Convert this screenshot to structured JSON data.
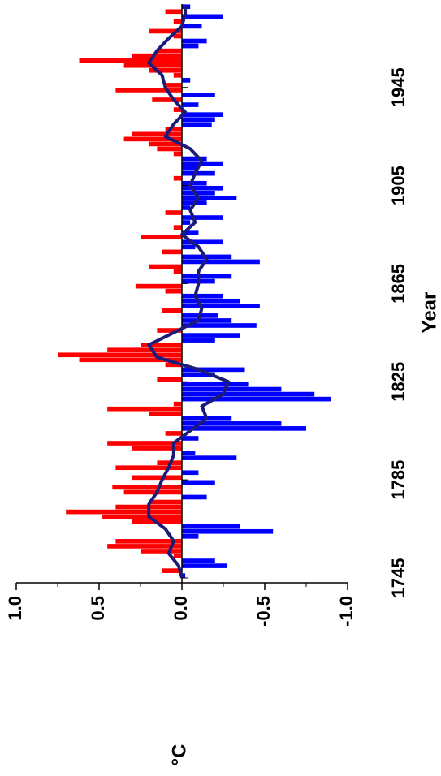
{
  "chart_data": {
    "type": "bar",
    "x_label": "Year",
    "y_label": "°C",
    "x": [
      1745,
      1747,
      1749,
      1751,
      1753,
      1755,
      1757,
      1759,
      1761,
      1763,
      1765,
      1767,
      1769,
      1771,
      1773,
      1775,
      1777,
      1779,
      1781,
      1783,
      1785,
      1787,
      1789,
      1791,
      1793,
      1795,
      1797,
      1799,
      1801,
      1803,
      1805,
      1807,
      1809,
      1811,
      1813,
      1815,
      1817,
      1819,
      1821,
      1823,
      1825,
      1827,
      1829,
      1831,
      1833,
      1835,
      1837,
      1839,
      1841,
      1843,
      1845,
      1847,
      1849,
      1851,
      1853,
      1855,
      1857,
      1859,
      1861,
      1863,
      1865,
      1867,
      1869,
      1871,
      1873,
      1875,
      1877,
      1879,
      1881,
      1883,
      1885,
      1887,
      1889,
      1891,
      1893,
      1895,
      1897,
      1899,
      1901,
      1903,
      1905,
      1907,
      1909,
      1911,
      1913,
      1915,
      1917,
      1919,
      1921,
      1923,
      1925,
      1927,
      1929,
      1931,
      1933,
      1935,
      1937,
      1939,
      1941,
      1943,
      1945,
      1947,
      1949,
      1951,
      1953,
      1955,
      1957,
      1959,
      1961,
      1963,
      1965,
      1967,
      1969,
      1971,
      1973,
      1975,
      1977
    ],
    "values": [
      -0.02,
      0.12,
      -0.27,
      -0.2,
      0.05,
      0.25,
      0.45,
      0.4,
      -0.1,
      -0.55,
      -0.35,
      0.3,
      0.48,
      0.7,
      0.4,
      0.2,
      -0.15,
      0.35,
      0.42,
      -0.2,
      0.3,
      -0.1,
      0.4,
      0.15,
      -0.33,
      -0.08,
      0.3,
      0.45,
      -0.1,
      0.1,
      -0.75,
      -0.6,
      -0.3,
      0.2,
      0.45,
      0.05,
      -0.9,
      -0.8,
      -0.6,
      -0.4,
      0.15,
      -0.2,
      -0.38,
      0.1,
      0.62,
      0.75,
      0.45,
      0.25,
      -0.2,
      -0.35,
      0.15,
      -0.45,
      -0.3,
      -0.22,
      0.12,
      -0.47,
      -0.35,
      -0.25,
      0.1,
      0.28,
      -0.2,
      -0.3,
      0.05,
      0.2,
      -0.47,
      -0.3,
      0.12,
      -0.08,
      -0.25,
      0.25,
      -0.1,
      0.05,
      -0.05,
      -0.25,
      0.1,
      -0.05,
      -0.15,
      -0.33,
      -0.2,
      -0.25,
      -0.15,
      0.05,
      -0.2,
      -0.1,
      -0.25,
      -0.15,
      0.05,
      0.15,
      0.2,
      0.35,
      0.3,
      0.1,
      -0.18,
      -0.2,
      -0.25,
      0.05,
      -0.1,
      0.18,
      -0.2,
      0.4,
      0.1,
      -0.05,
      0.05,
      0.2,
      0.35,
      0.62,
      0.3,
      0.15,
      -0.1,
      -0.15,
      0.05,
      0.2,
      -0.12,
      0.05,
      -0.25,
      0.1,
      -0.05
    ],
    "positive_color": "#ff0000",
    "negative_color": "#0000ff",
    "smooth": {
      "color": "#1c1c78",
      "x": [
        1745,
        1750,
        1755,
        1760,
        1765,
        1770,
        1775,
        1780,
        1785,
        1790,
        1795,
        1800,
        1805,
        1810,
        1815,
        1820,
        1825,
        1830,
        1835,
        1840,
        1845,
        1850,
        1855,
        1860,
        1865,
        1870,
        1875,
        1880,
        1885,
        1890,
        1895,
        1900,
        1905,
        1910,
        1915,
        1920,
        1925,
        1930,
        1935,
        1940,
        1945,
        1950,
        1955,
        1960,
        1965,
        1970,
        1975,
        1978
      ],
      "values": [
        0,
        0.02,
        0.08,
        0.05,
        0.1,
        0.2,
        0.2,
        0.15,
        0.12,
        0.08,
        0.05,
        0.05,
        -0.05,
        -0.15,
        -0.12,
        -0.25,
        -0.28,
        -0.1,
        0.15,
        0.2,
        0.05,
        -0.1,
        -0.12,
        -0.08,
        -0.1,
        -0.1,
        -0.15,
        -0.1,
        0,
        -0.08,
        -0.05,
        -0.1,
        -0.05,
        -0.08,
        -0.12,
        -0.05,
        0.1,
        0.05,
        -0.02,
        0.05,
        0.1,
        0.12,
        0.2,
        0.15,
        0.08,
        0,
        -0.02,
        -0.02
      ]
    },
    "xlim": [
      1744,
      1979
    ],
    "xticks": [
      1745,
      1785,
      1825,
      1865,
      1905,
      1945
    ],
    "ylim": [
      -1.0,
      1.0
    ],
    "yticks": [
      {
        "value": 1.0,
        "label": "1.0"
      },
      {
        "value": 0.5,
        "label": "0.5"
      },
      {
        "value": 0,
        "label": "0.0"
      },
      {
        "value": -0.5,
        "label": "-0.5"
      },
      {
        "value": -1.0,
        "label": "-1.0"
      }
    ]
  }
}
